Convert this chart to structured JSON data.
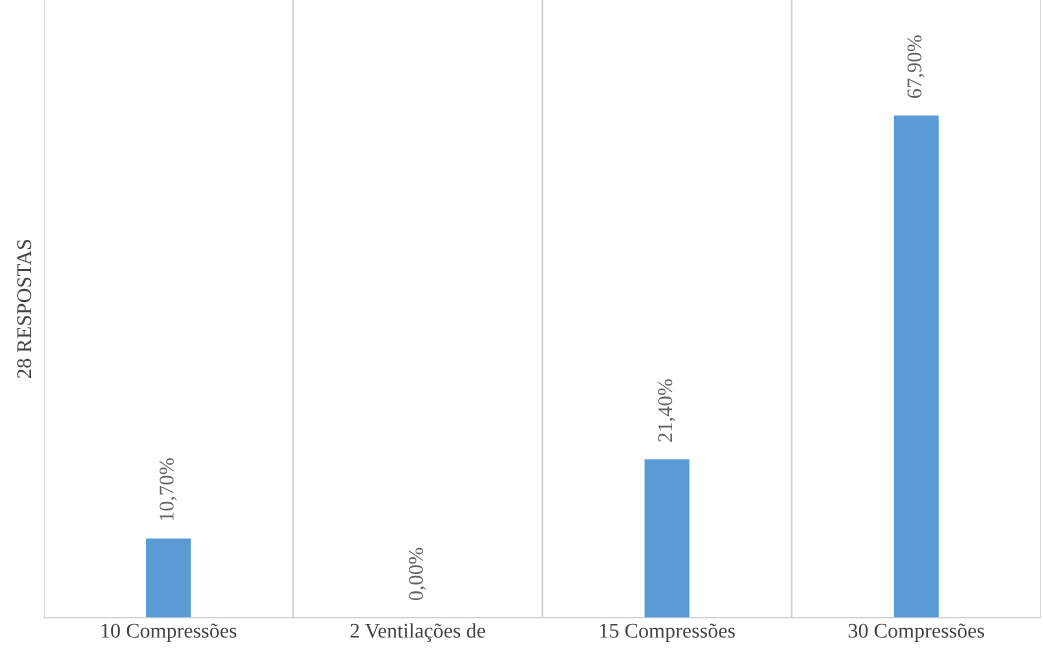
{
  "chart_data": {
    "type": "bar",
    "ylabel": "28 RESPOSTAS",
    "categories": [
      "10 Compressões",
      "2 Ventilações de",
      "15 Compressões",
      "30 Compressões"
    ],
    "values": [
      10.7,
      0,
      21.4,
      67.9
    ],
    "value_labels": [
      "10,70%",
      "0,00%",
      "21,40%",
      "67,90%"
    ],
    "color": "#5b9bd5",
    "grid": "x",
    "legend": false
  }
}
